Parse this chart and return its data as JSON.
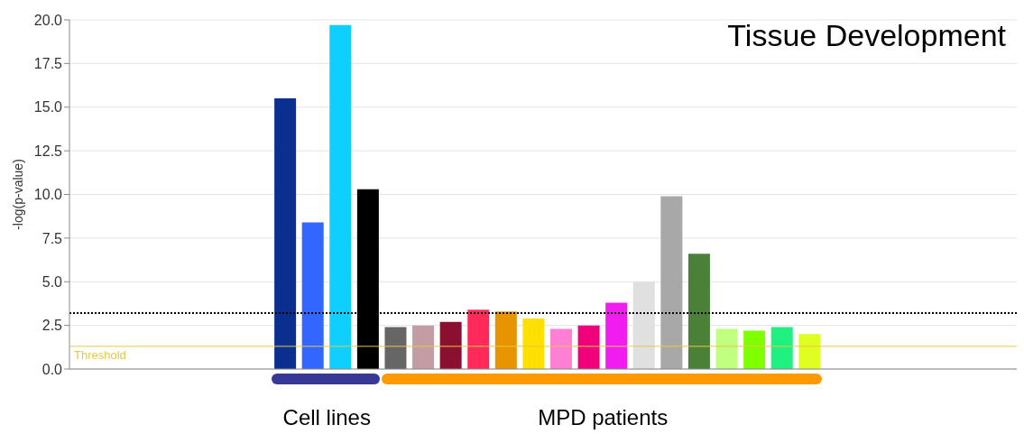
{
  "chart_data": {
    "type": "bar",
    "title": "Tissue Development",
    "ylabel": "-log(p-value)",
    "categories": [
      null,
      null,
      null,
      null,
      null,
      null,
      null,
      null,
      null,
      null,
      null,
      null,
      null,
      null,
      null,
      null,
      null,
      null,
      null,
      null,
      null,
      null,
      null,
      null,
      null,
      null,
      null,
      null,
      null,
      null,
      null,
      null,
      null,
      null
    ],
    "values": [
      null,
      null,
      null,
      null,
      null,
      null,
      null,
      15.5,
      8.4,
      19.7,
      10.3,
      2.4,
      2.5,
      2.7,
      3.4,
      3.3,
      2.9,
      2.3,
      2.5,
      3.8,
      5.0,
      9.9,
      6.6,
      2.3,
      2.2,
      2.4,
      2.0,
      null,
      null,
      null,
      null,
      null,
      null,
      null
    ],
    "colors": [
      null,
      null,
      null,
      null,
      null,
      null,
      null,
      "#0a2f8f",
      "#3366ff",
      "#0fcfff",
      "#000000",
      "#666666",
      "#c49ca4",
      "#8b1030",
      "#ff2a5a",
      "#e89400",
      "#ffe000",
      "#ff7fd4",
      "#f0007a",
      "#f01cf0",
      "#e0e0e0",
      "#a8a8a8",
      "#4a8038",
      "#c0ff80",
      "#80ff00",
      "#20f080",
      "#e0ff20",
      null,
      null,
      null,
      null,
      null,
      null,
      null
    ],
    "ylim": [
      0,
      20
    ],
    "yticks": [
      {
        "value": 0,
        "label": "0.0"
      },
      {
        "value": 2.5,
        "label": "2.5"
      },
      {
        "value": 5,
        "label": "5.0"
      },
      {
        "value": 7.5,
        "label": "7.5"
      },
      {
        "value": 10,
        "label": "10.0"
      },
      {
        "value": 12.5,
        "label": "12.5"
      },
      {
        "value": 15,
        "label": "15.0"
      },
      {
        "value": 17.5,
        "label": "17.5"
      },
      {
        "value": 20,
        "label": "20.0"
      }
    ],
    "grid": "y",
    "ref_lines": [
      {
        "axis": "y",
        "value": 3.2,
        "color": "#000000",
        "line_style": "dotted"
      },
      {
        "axis": "y",
        "value": 1.3,
        "label": "Threshold",
        "color": "#e8c840",
        "line_style": "solid"
      }
    ],
    "annotations": [
      "Cell lines",
      "MPD patients"
    ]
  }
}
